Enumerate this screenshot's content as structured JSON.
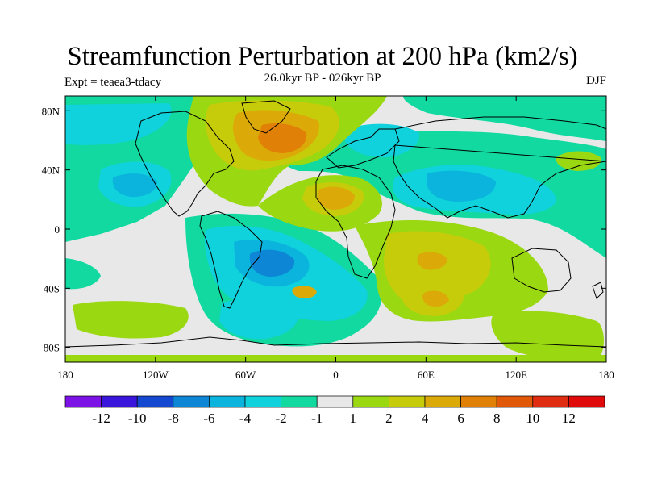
{
  "header": {
    "title": "Streamfunction Perturbation at 200 hPa (km2/s)",
    "subtitle": "26.0kyr BP - 026kyr BP",
    "left": "Expt = teaea3-tdacy",
    "right": "DJF"
  },
  "map": {
    "lon_range": [
      -180,
      180
    ],
    "lat_range": [
      -90,
      90
    ],
    "x_ticks": [
      {
        "value": -180,
        "label": "180"
      },
      {
        "value": -120,
        "label": "120W"
      },
      {
        "value": -60,
        "label": "60W"
      },
      {
        "value": 0,
        "label": "0"
      },
      {
        "value": 60,
        "label": "60E"
      },
      {
        "value": 120,
        "label": "120E"
      },
      {
        "value": 180,
        "label": "180"
      }
    ],
    "y_ticks": [
      {
        "value": 80,
        "label": "80N"
      },
      {
        "value": 40,
        "label": "40N"
      },
      {
        "value": 0,
        "label": "0"
      },
      {
        "value": -40,
        "label": "40S"
      },
      {
        "value": -80,
        "label": "80S"
      }
    ]
  },
  "colorbar": {
    "colors": [
      "#7c12e6",
      "#3a16dc",
      "#1448d0",
      "#0e86d6",
      "#0ab4dc",
      "#10d2dc",
      "#12d9a0",
      "#e8e8e8",
      "#9ad812",
      "#c6cc0a",
      "#dcaa08",
      "#e08006",
      "#e05808",
      "#e02c10",
      "#e00a0a"
    ],
    "labels": [
      "-12",
      "-10",
      "-8",
      "-6",
      "-4",
      "-2",
      "-1",
      "1",
      "2",
      "4",
      "6",
      "8",
      "10",
      "12"
    ]
  },
  "chart_data": {
    "type": "heatmap",
    "title": "Streamfunction Perturbation at 200 hPa (km2/s)",
    "subtitle": "26.0kyr BP - 026kyr BP",
    "experiment": "Expt = teaea3-tdacy",
    "season": "DJF",
    "contour_levels": [
      -12,
      -10,
      -8,
      -6,
      -4,
      -2,
      -1,
      1,
      2,
      4,
      6,
      8,
      10,
      12
    ],
    "features": [
      {
        "lon": -40,
        "lat": 62,
        "value": 6
      },
      {
        "lon": -45,
        "lat": 55,
        "value": 4
      },
      {
        "lon": 10,
        "lat": 22,
        "value": 5
      },
      {
        "lon": 30,
        "lat": -20,
        "value": 3
      },
      {
        "lon": 55,
        "lat": -30,
        "value": 4
      },
      {
        "lon": 60,
        "lat": -48,
        "value": 5
      },
      {
        "lon": 140,
        "lat": -50,
        "value": 2
      },
      {
        "lon": -140,
        "lat": 28,
        "value": -4
      },
      {
        "lon": 70,
        "lat": 28,
        "value": -3
      },
      {
        "lon": -40,
        "lat": -20,
        "value": -6
      },
      {
        "lon": -50,
        "lat": -60,
        "value": -4
      },
      {
        "lon": 15,
        "lat": 55,
        "value": -3
      }
    ]
  }
}
